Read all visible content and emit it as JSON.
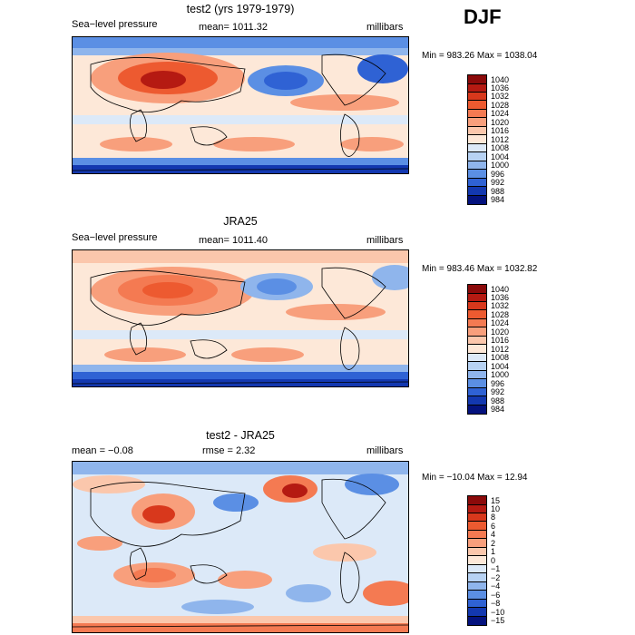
{
  "season": "DJF",
  "panels": [
    {
      "title": "test2 (yrs 1979-1979)",
      "left_label": "Sea−level pressure",
      "mid_label": "mean= 1011.32",
      "right_label": "millibars",
      "minmax": "Min = 983.26 Max = 1038.04"
    },
    {
      "title": "JRA25",
      "left_label": "Sea−level pressure",
      "mid_label": "mean= 1011.40",
      "right_label": "millibars",
      "minmax": "Min = 983.46 Max = 1032.82"
    },
    {
      "title": "test2 - JRA25",
      "left_label": "mean =  −0.08",
      "mid_label": "rmse =   2.32",
      "right_label": "millibars",
      "minmax": "Min = −10.04 Max =   12.94"
    }
  ],
  "colorbars": {
    "pressure": {
      "labels": [
        "1040",
        "1036",
        "1032",
        "1028",
        "1024",
        "1020",
        "1016",
        "1012",
        "1008",
        "1004",
        "1000",
        "996",
        "992",
        "988",
        "984"
      ],
      "colors": [
        "#8b0a0a",
        "#b51a12",
        "#d8381c",
        "#ed5a30",
        "#f47a52",
        "#f89f7c",
        "#fbc7ac",
        "#fde8d8",
        "#dce9f8",
        "#b7d2f3",
        "#8fb5ec",
        "#5b8fe4",
        "#2f62d4",
        "#1338b0",
        "#04127e"
      ]
    },
    "difference": {
      "labels": [
        "15",
        "10",
        "8",
        "6",
        "4",
        "2",
        "1",
        "0",
        "−1",
        "−2",
        "−4",
        "−6",
        "−8",
        "−10",
        "−15"
      ],
      "colors": [
        "#8b0a0a",
        "#b51a12",
        "#d8381c",
        "#ed5a30",
        "#f47a52",
        "#f89f7c",
        "#fbc7ac",
        "#fde8d8",
        "#dce9f8",
        "#b7d2f3",
        "#8fb5ec",
        "#5b8fe4",
        "#2f62d4",
        "#1338b0",
        "#04127e"
      ]
    }
  }
}
